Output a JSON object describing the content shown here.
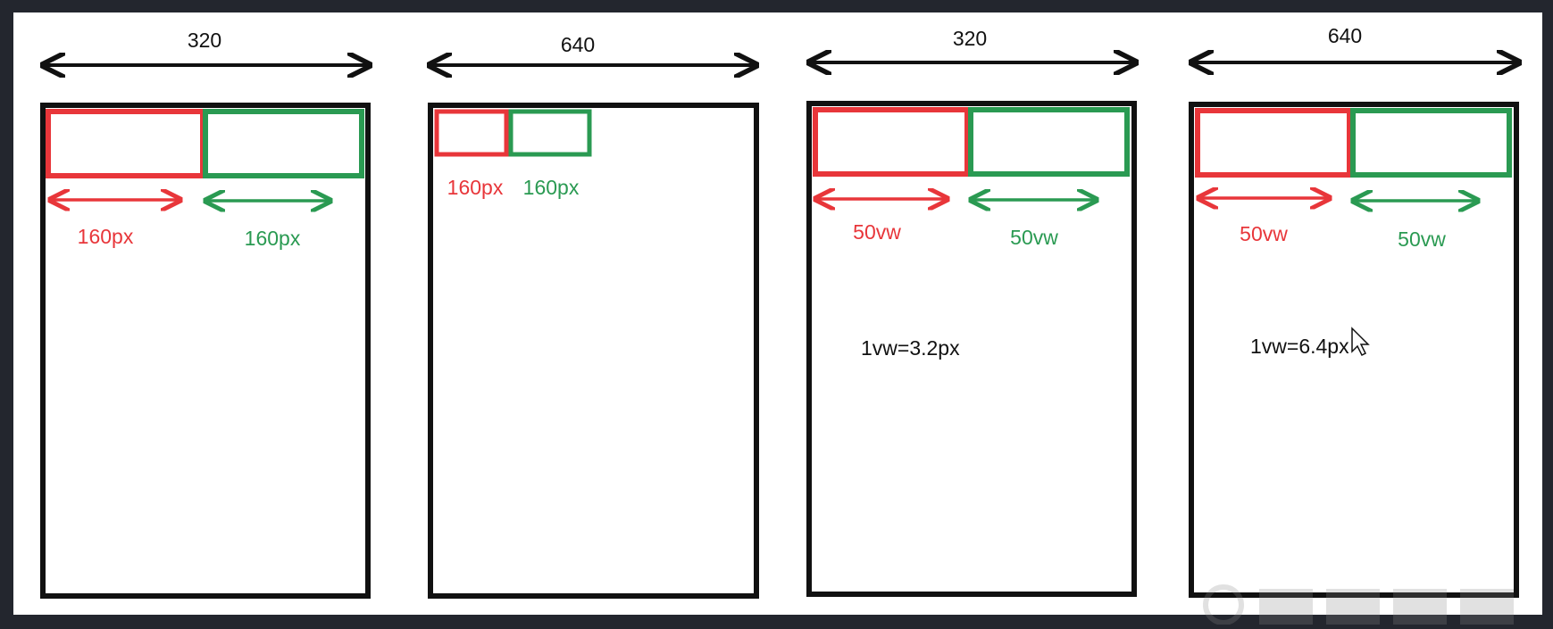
{
  "panels": [
    {
      "width_label": "320",
      "red_label": "160px",
      "green_label": "160px",
      "note": ""
    },
    {
      "width_label": "640",
      "red_label": "160px",
      "green_label": "160px",
      "note": ""
    },
    {
      "width_label": "320",
      "red_label": "50vw",
      "green_label": "50vw",
      "note": "1vw=3.2px"
    },
    {
      "width_label": "640",
      "red_label": "50vw",
      "green_label": "50vw",
      "note": "1vw=6.4px"
    }
  ],
  "colors": {
    "red": "#e8363a",
    "green": "#2a9a52",
    "border": "#111111",
    "background": "#23262e"
  },
  "icons": [
    "double-arrow-icon",
    "cursor-icon",
    "watermark-logo-icon"
  ]
}
